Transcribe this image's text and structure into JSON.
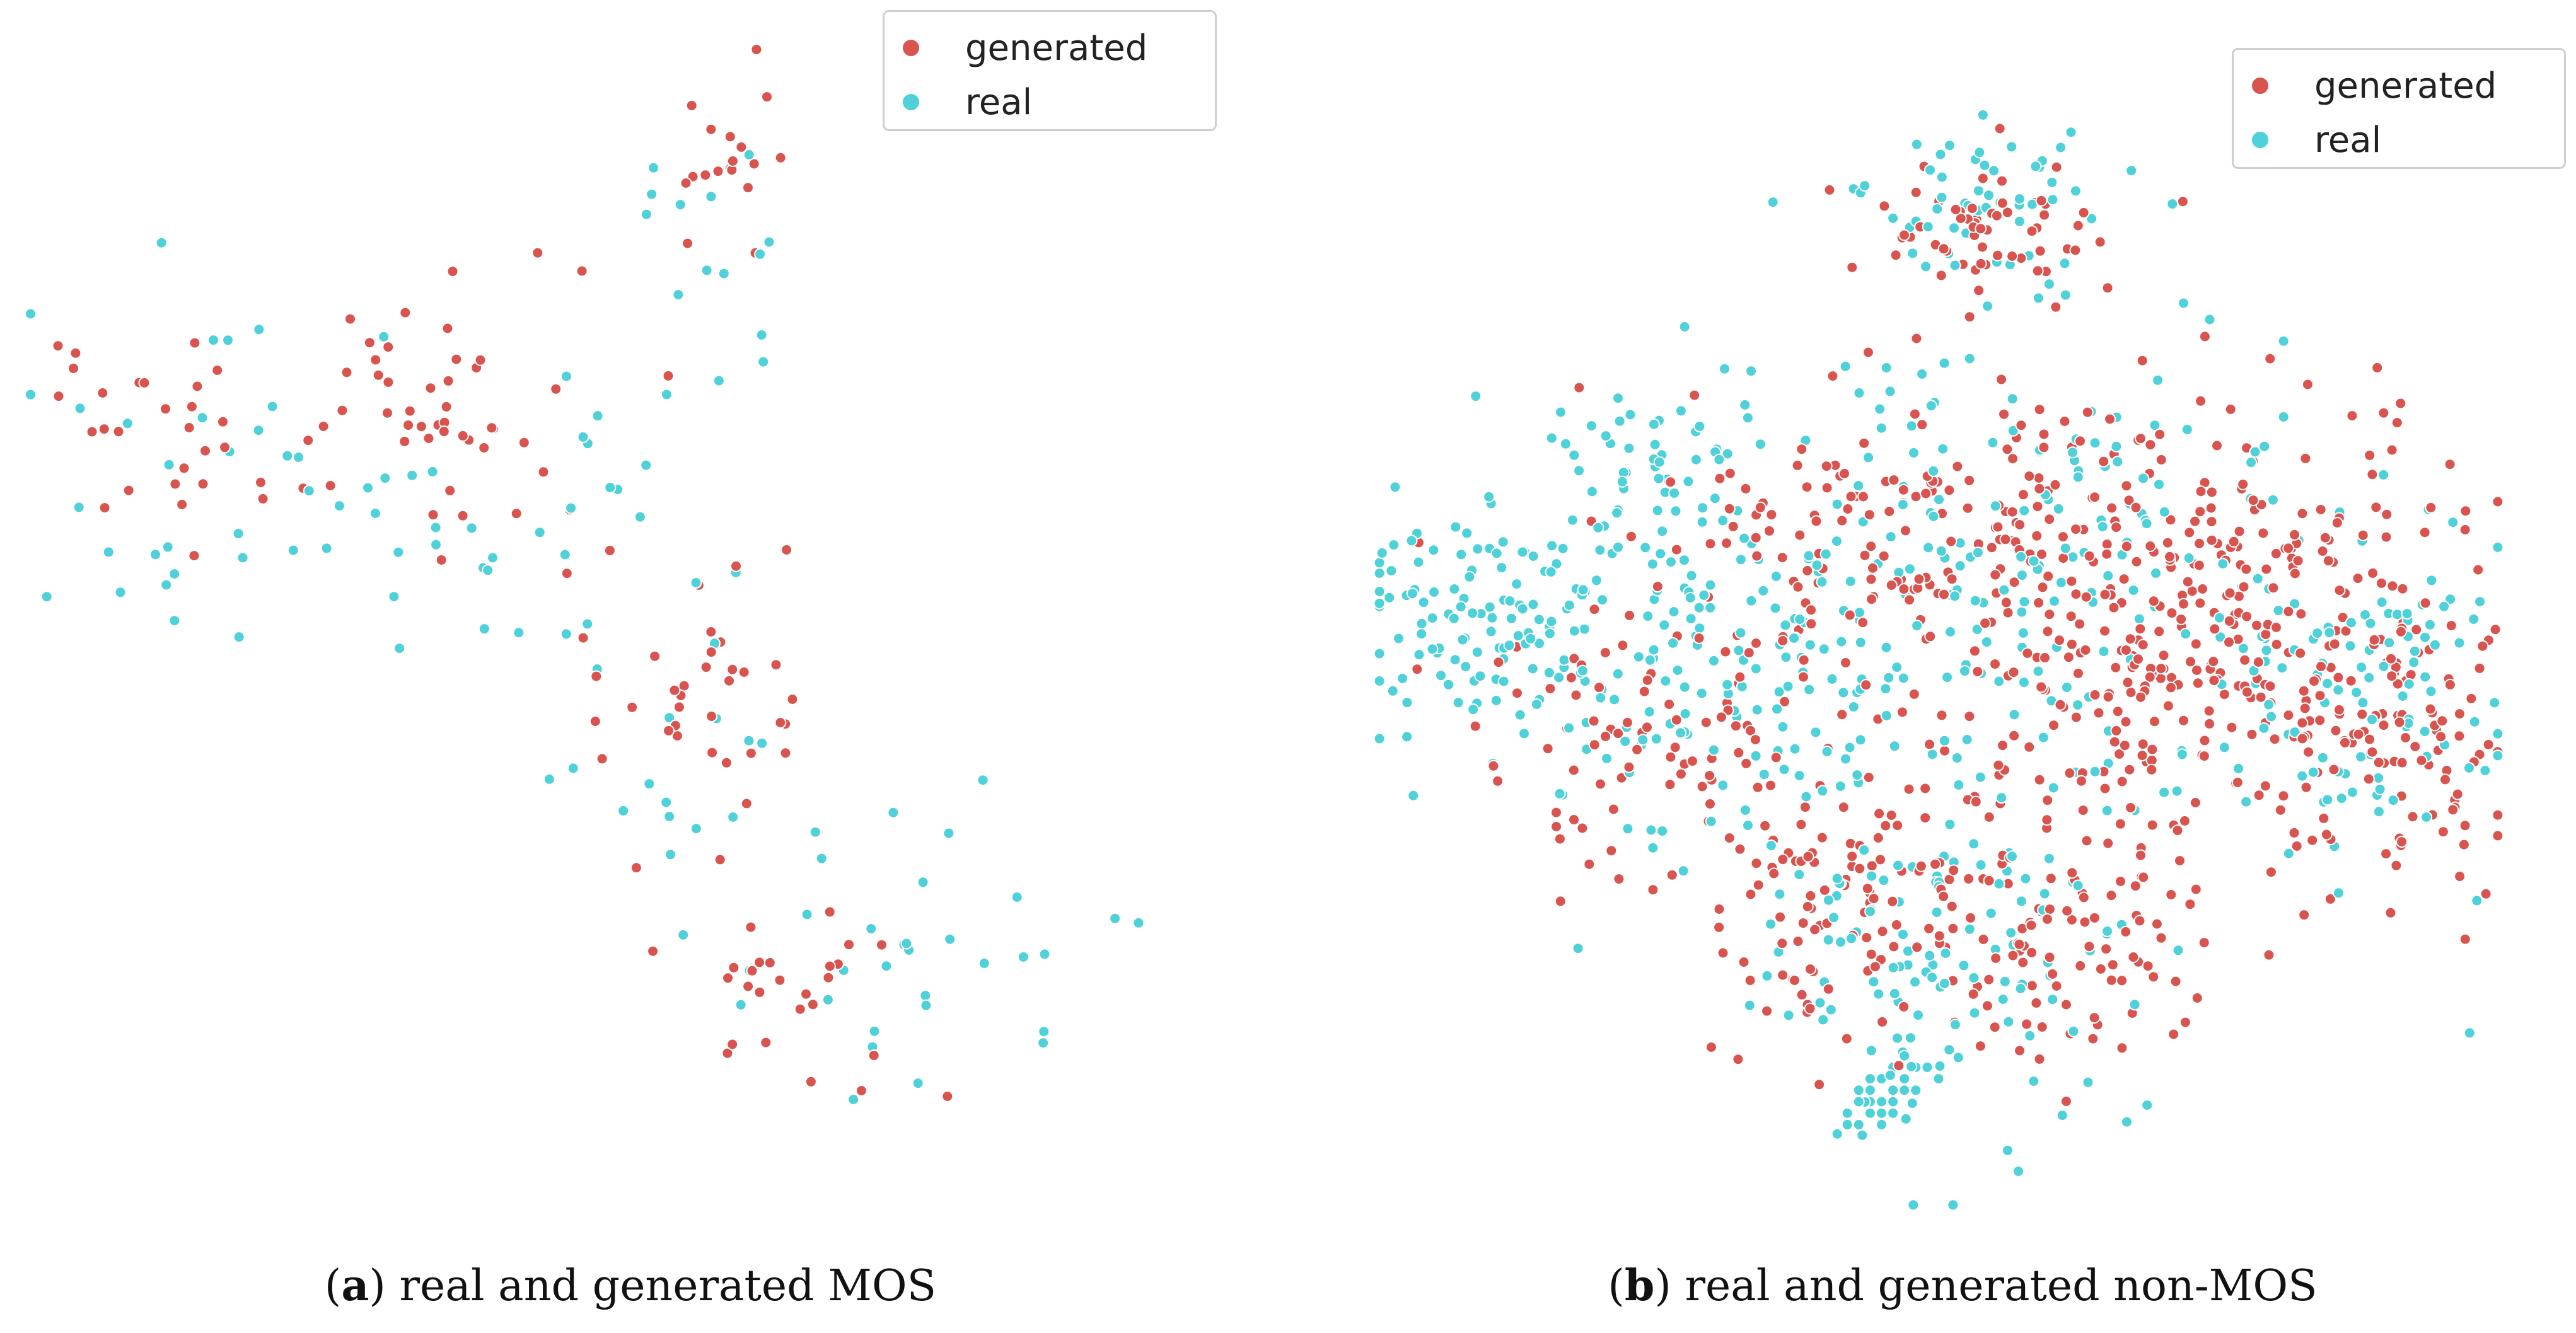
{
  "colors": {
    "generated": "#d9544f",
    "real": "#4fd1d9"
  },
  "chart_data": [
    {
      "type": "scatter",
      "title": "",
      "xlabel": "",
      "ylabel": "",
      "xlim": [
        0,
        100
      ],
      "ylim": [
        0,
        100
      ],
      "grid": false,
      "legend": {
        "placement": "top-right",
        "entries": [
          "generated",
          "real"
        ]
      },
      "caption": {
        "letter": "a",
        "text": "real and generated MOS"
      },
      "series": [
        {
          "name": "generated",
          "clusters": [
            {
              "cx": 11,
              "cy": 66,
              "sx": 5,
              "sy": 5,
              "n": 30
            },
            {
              "cx": 37,
              "cy": 69,
              "sx": 6,
              "sy": 6,
              "n": 45
            },
            {
              "cx": 62,
              "cy": 90,
              "sx": 2.5,
              "sy": 4,
              "n": 18
            },
            {
              "cx": 60,
              "cy": 45,
              "sx": 5,
              "sy": 8,
              "n": 40
            },
            {
              "cx": 67,
              "cy": 18,
              "sx": 6,
              "sy": 5,
              "n": 25
            }
          ]
        },
        {
          "name": "real",
          "clusters": [
            {
              "cx": 14,
              "cy": 60,
              "sx": 8,
              "sy": 7,
              "n": 30
            },
            {
              "cx": 40,
              "cy": 60,
              "sx": 7,
              "sy": 8,
              "n": 30
            },
            {
              "cx": 60,
              "cy": 82,
              "sx": 4,
              "sy": 7,
              "n": 15
            },
            {
              "cx": 78,
              "cy": 22,
              "sx": 8,
              "sy": 6,
              "n": 30
            },
            {
              "cx": 55,
              "cy": 40,
              "sx": 7,
              "sy": 8,
              "n": 20
            }
          ]
        }
      ]
    },
    {
      "type": "scatter",
      "title": "",
      "xlabel": "",
      "ylabel": "",
      "xlim": [
        0,
        100
      ],
      "ylim": [
        0,
        100
      ],
      "grid": false,
      "legend": {
        "placement": "top-right",
        "entries": [
          "generated",
          "real"
        ]
      },
      "caption": {
        "letter": "b",
        "text": "real and generated non-MOS"
      },
      "series": [
        {
          "name": "generated",
          "clusters": [
            {
              "cx": 60,
              "cy": 55,
              "sx": 12,
              "sy": 10,
              "n": 260
            },
            {
              "cx": 80,
              "cy": 50,
              "sx": 10,
              "sy": 10,
              "n": 200
            },
            {
              "cx": 45,
              "cy": 28,
              "sx": 8,
              "sy": 7,
              "n": 120
            },
            {
              "cx": 62,
              "cy": 25,
              "sx": 6,
              "sy": 6,
              "n": 90
            },
            {
              "cx": 54,
              "cy": 86,
              "sx": 5,
              "sy": 3,
              "n": 60
            },
            {
              "cx": 25,
              "cy": 42,
              "sx": 9,
              "sy": 6,
              "n": 90
            },
            {
              "cx": 92,
              "cy": 42,
              "sx": 5,
              "sy": 7,
              "n": 70
            },
            {
              "cx": 40,
              "cy": 60,
              "sx": 8,
              "sy": 6,
              "n": 60
            }
          ]
        },
        {
          "name": "real",
          "clusters": [
            {
              "cx": 55,
              "cy": 55,
              "sx": 15,
              "sy": 12,
              "n": 220
            },
            {
              "cx": 10,
              "cy": 52,
              "sx": 7,
              "sy": 5,
              "n": 110
            },
            {
              "cx": 30,
              "cy": 48,
              "sx": 10,
              "sy": 8,
              "n": 130
            },
            {
              "cx": 55,
              "cy": 88,
              "sx": 6,
              "sy": 4,
              "n": 55
            },
            {
              "cx": 88,
              "cy": 45,
              "sx": 7,
              "sy": 8,
              "n": 90
            },
            {
              "cx": 50,
              "cy": 22,
              "sx": 8,
              "sy": 8,
              "n": 110
            },
            {
              "cx": 23,
              "cy": 65,
              "sx": 5,
              "sy": 4,
              "n": 45
            }
          ]
        },
        {
          "name": "real",
          "points": [
            [
              44,
              10
            ],
            [
              45,
              9
            ],
            [
              46,
              11
            ],
            [
              47,
              12
            ],
            [
              45,
              8
            ],
            [
              46,
              10
            ],
            [
              44,
              9
            ],
            [
              43,
              8
            ],
            [
              46,
              13
            ],
            [
              47,
              11
            ],
            [
              45,
              12
            ],
            [
              44,
              11
            ],
            [
              48,
              13
            ],
            [
              43,
              10
            ],
            [
              42,
              9
            ],
            [
              46,
              9
            ],
            [
              47,
              14
            ],
            [
              45,
              10
            ],
            [
              44,
              12
            ],
            [
              49,
              13
            ],
            [
              42,
              8
            ],
            [
              48,
              11
            ],
            [
              43,
              11
            ],
            [
              50,
              12
            ]
          ]
        }
      ]
    }
  ]
}
